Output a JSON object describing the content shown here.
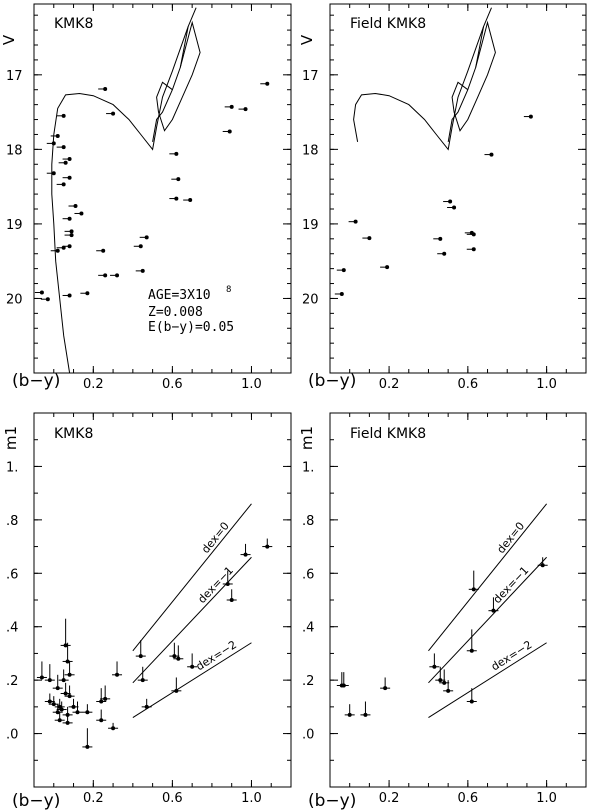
{
  "chart_data": [
    {
      "id": "cmd-kmk8",
      "type": "scatter",
      "title": "KMK8",
      "xlabel": "(b−y)",
      "ylabel": "V",
      "xlim": [
        -0.1,
        1.2
      ],
      "ylim": [
        21,
        16.05
      ],
      "y_inverted": true,
      "x_tick_labels": [
        "0.2",
        "0.6",
        "1.0"
      ],
      "x_ticks": [
        0.2,
        0.6,
        1.0
      ],
      "y_tick_labels": [
        "17",
        "18",
        "19",
        "20"
      ],
      "y_ticks": [
        17,
        18,
        19,
        20
      ],
      "annotations": [
        "AGE=3X10",
        "8",
        "Z=0.008",
        "E(b−y)=0.05"
      ],
      "isochrone": [
        [
          [
            0.08,
            21.0
          ],
          [
            0.05,
            20.5
          ],
          [
            0.03,
            20.0
          ],
          [
            0.01,
            19.5
          ],
          [
            -0.0,
            19.0
          ],
          [
            -0.01,
            18.6
          ],
          [
            -0.01,
            18.2
          ],
          [
            -0.0,
            17.8
          ],
          [
            0.02,
            17.45
          ],
          [
            0.06,
            17.27
          ],
          [
            0.13,
            17.25
          ],
          [
            0.2,
            17.28
          ],
          [
            0.3,
            17.4
          ],
          [
            0.38,
            17.6
          ],
          [
            0.44,
            17.8
          ],
          [
            0.5,
            18.0
          ],
          [
            0.52,
            17.7
          ],
          [
            0.55,
            17.3
          ],
          [
            0.6,
            16.95
          ],
          [
            0.64,
            16.65
          ],
          [
            0.68,
            16.35
          ],
          [
            0.72,
            16.1
          ]
        ],
        [
          [
            0.68,
            16.35
          ],
          [
            0.64,
            16.9
          ],
          [
            0.6,
            17.2
          ],
          [
            0.55,
            17.5
          ],
          [
            0.52,
            17.6
          ],
          [
            0.5,
            17.9
          ]
        ],
        [
          [
            0.64,
            16.9
          ],
          [
            0.67,
            16.6
          ],
          [
            0.7,
            16.3
          ],
          [
            0.74,
            16.7
          ],
          [
            0.7,
            17.0
          ],
          [
            0.65,
            17.3
          ],
          [
            0.6,
            17.6
          ],
          [
            0.56,
            17.75
          ],
          [
            0.53,
            17.5
          ],
          [
            0.52,
            17.3
          ],
          [
            0.55,
            17.1
          ],
          [
            0.6,
            17.2
          ]
        ]
      ],
      "points": [
        {
          "x": 0.26,
          "y": 17.19
        },
        {
          "x": 0.3,
          "y": 17.52
        },
        {
          "x": 1.08,
          "y": 17.12
        },
        {
          "x": 0.9,
          "y": 17.43
        },
        {
          "x": 0.97,
          "y": 17.46
        },
        {
          "x": 0.89,
          "y": 17.76
        },
        {
          "x": 0.05,
          "y": 17.55
        },
        {
          "x": 0.02,
          "y": 17.82
        },
        {
          "x": 0.0,
          "y": 17.92
        },
        {
          "x": 0.05,
          "y": 17.97
        },
        {
          "x": 0.08,
          "y": 18.13
        },
        {
          "x": 0.06,
          "y": 18.18
        },
        {
          "x": 0.0,
          "y": 18.32
        },
        {
          "x": 0.08,
          "y": 18.38
        },
        {
          "x": 0.05,
          "y": 18.47
        },
        {
          "x": 0.62,
          "y": 18.06
        },
        {
          "x": 0.63,
          "y": 18.4
        },
        {
          "x": 0.62,
          "y": 18.66
        },
        {
          "x": 0.69,
          "y": 18.68
        },
        {
          "x": 0.11,
          "y": 18.76
        },
        {
          "x": 0.14,
          "y": 18.86
        },
        {
          "x": 0.08,
          "y": 18.93
        },
        {
          "x": 0.09,
          "y": 19.1
        },
        {
          "x": 0.09,
          "y": 19.15
        },
        {
          "x": 0.08,
          "y": 19.3
        },
        {
          "x": 0.05,
          "y": 19.32
        },
        {
          "x": 0.02,
          "y": 19.36
        },
        {
          "x": 0.25,
          "y": 19.36
        },
        {
          "x": 0.47,
          "y": 19.18
        },
        {
          "x": 0.44,
          "y": 19.3
        },
        {
          "x": 0.26,
          "y": 19.69
        },
        {
          "x": 0.32,
          "y": 19.69
        },
        {
          "x": 0.45,
          "y": 19.63
        },
        {
          "x": -0.06,
          "y": 19.92
        },
        {
          "x": -0.03,
          "y": 20.01
        },
        {
          "x": 0.08,
          "y": 19.96
        },
        {
          "x": 0.17,
          "y": 19.93
        }
      ]
    },
    {
      "id": "cmd-field",
      "type": "scatter",
      "title": "Field KMK8",
      "xlabel": "(b−y)",
      "ylabel": "V",
      "xlim": [
        -0.1,
        1.2
      ],
      "ylim": [
        21,
        16.05
      ],
      "y_inverted": true,
      "x_tick_labels": [
        "0.2",
        "0.6",
        "1.0"
      ],
      "x_ticks": [
        0.2,
        0.6,
        1.0
      ],
      "y_tick_labels": [
        "17",
        "18",
        "19",
        "20"
      ],
      "y_ticks": [
        17,
        18,
        19,
        20
      ],
      "isochrone": [
        [
          [
            0.04,
            17.9
          ],
          [
            0.02,
            17.6
          ],
          [
            0.03,
            17.4
          ],
          [
            0.06,
            17.27
          ],
          [
            0.13,
            17.25
          ],
          [
            0.2,
            17.28
          ],
          [
            0.3,
            17.4
          ],
          [
            0.38,
            17.6
          ],
          [
            0.44,
            17.8
          ],
          [
            0.5,
            18.0
          ],
          [
            0.52,
            17.7
          ],
          [
            0.55,
            17.3
          ],
          [
            0.6,
            16.95
          ],
          [
            0.64,
            16.65
          ],
          [
            0.68,
            16.35
          ],
          [
            0.72,
            16.1
          ]
        ],
        [
          [
            0.68,
            16.35
          ],
          [
            0.64,
            16.9
          ],
          [
            0.6,
            17.2
          ],
          [
            0.55,
            17.5
          ],
          [
            0.52,
            17.6
          ],
          [
            0.5,
            17.9
          ]
        ],
        [
          [
            0.64,
            16.9
          ],
          [
            0.67,
            16.6
          ],
          [
            0.7,
            16.3
          ],
          [
            0.74,
            16.7
          ],
          [
            0.7,
            17.0
          ],
          [
            0.65,
            17.3
          ],
          [
            0.6,
            17.6
          ],
          [
            0.56,
            17.75
          ],
          [
            0.53,
            17.5
          ],
          [
            0.52,
            17.3
          ],
          [
            0.55,
            17.1
          ],
          [
            0.6,
            17.2
          ]
        ]
      ],
      "points": [
        {
          "x": 0.92,
          "y": 17.56
        },
        {
          "x": 0.72,
          "y": 18.07
        },
        {
          "x": 0.03,
          "y": 18.97
        },
        {
          "x": 0.1,
          "y": 19.19
        },
        {
          "x": 0.46,
          "y": 19.2
        },
        {
          "x": 0.51,
          "y": 18.7
        },
        {
          "x": 0.53,
          "y": 18.78
        },
        {
          "x": 0.62,
          "y": 19.12
        },
        {
          "x": 0.63,
          "y": 19.14
        },
        {
          "x": 0.63,
          "y": 19.34
        },
        {
          "x": 0.48,
          "y": 19.4
        },
        {
          "x": 0.19,
          "y": 19.58
        },
        {
          "x": -0.03,
          "y": 19.62
        },
        {
          "x": -0.04,
          "y": 19.94
        }
      ]
    },
    {
      "id": "m1-kmk8",
      "type": "scatter",
      "title": "KMK8",
      "xlabel": "(b−y)",
      "ylabel": "m1",
      "xlim": [
        -0.1,
        1.2
      ],
      "ylim": [
        -0.2,
        1.2
      ],
      "x_tick_labels": [
        "0.2",
        "0.6",
        "1.0"
      ],
      "x_ticks": [
        0.2,
        0.6,
        1.0
      ],
      "y_tick_labels": [
        ".0",
        ".2",
        ".4",
        ".6",
        ".8",
        "1."
      ],
      "y_ticks": [
        0.0,
        0.2,
        0.4,
        0.6,
        0.8,
        1.0
      ],
      "metallicity_lines": [
        {
          "label": "dex=0",
          "from": [
            0.4,
            0.31
          ],
          "to": [
            1.0,
            0.86
          ]
        },
        {
          "label": "dex=−1",
          "from": [
            0.4,
            0.19
          ],
          "to": [
            1.0,
            0.66
          ]
        },
        {
          "label": "dex=−2",
          "from": [
            0.4,
            0.06
          ],
          "to": [
            1.0,
            0.34
          ]
        }
      ],
      "points": [
        {
          "x": -0.06,
          "y": 0.21,
          "err": 0.06
        },
        {
          "x": -0.02,
          "y": 0.2,
          "err": 0.06
        },
        {
          "x": 0.02,
          "y": 0.17,
          "err": 0.05
        },
        {
          "x": 0.06,
          "y": 0.33,
          "err": 0.1
        },
        {
          "x": 0.07,
          "y": 0.27,
          "err": 0.07
        },
        {
          "x": 0.08,
          "y": 0.22,
          "err": 0.05
        },
        {
          "x": 0.05,
          "y": 0.2,
          "err": 0.04
        },
        {
          "x": -0.02,
          "y": 0.12,
          "err": 0.03
        },
        {
          "x": 0.0,
          "y": 0.11,
          "err": 0.03
        },
        {
          "x": 0.03,
          "y": 0.1,
          "err": 0.03
        },
        {
          "x": 0.06,
          "y": 0.15,
          "err": 0.04
        },
        {
          "x": 0.08,
          "y": 0.14,
          "err": 0.04
        },
        {
          "x": 0.02,
          "y": 0.08,
          "err": 0.03
        },
        {
          "x": 0.04,
          "y": 0.09,
          "err": 0.03
        },
        {
          "x": 0.07,
          "y": 0.07,
          "err": 0.03
        },
        {
          "x": 0.1,
          "y": 0.1,
          "err": 0.03
        },
        {
          "x": 0.12,
          "y": 0.08,
          "err": 0.04
        },
        {
          "x": 0.03,
          "y": 0.05,
          "err": 0.03
        },
        {
          "x": 0.07,
          "y": 0.04,
          "err": 0.03
        },
        {
          "x": 0.17,
          "y": 0.08,
          "err": 0.03
        },
        {
          "x": 0.24,
          "y": 0.12,
          "err": 0.05
        },
        {
          "x": 0.26,
          "y": 0.13,
          "err": 0.05
        },
        {
          "x": 0.24,
          "y": 0.05,
          "err": 0.04
        },
        {
          "x": 0.3,
          "y": 0.02,
          "err": 0.02
        },
        {
          "x": 0.17,
          "y": -0.05,
          "err": 0.07
        },
        {
          "x": 0.32,
          "y": 0.22,
          "err": 0.05
        },
        {
          "x": 0.44,
          "y": 0.29,
          "err": 0.06
        },
        {
          "x": 0.45,
          "y": 0.2,
          "err": 0.05
        },
        {
          "x": 0.47,
          "y": 0.1,
          "err": 0.03
        },
        {
          "x": 0.61,
          "y": 0.29,
          "err": 0.05
        },
        {
          "x": 0.63,
          "y": 0.28,
          "err": 0.05
        },
        {
          "x": 0.62,
          "y": 0.16,
          "err": 0.05
        },
        {
          "x": 0.7,
          "y": 0.25,
          "err": 0.05
        },
        {
          "x": 0.88,
          "y": 0.56,
          "err": 0.05
        },
        {
          "x": 0.9,
          "y": 0.5,
          "err": 0.04
        },
        {
          "x": 0.97,
          "y": 0.67,
          "err": 0.04
        },
        {
          "x": 1.08,
          "y": 0.7,
          "err": 0.03
        }
      ]
    },
    {
      "id": "m1-field",
      "type": "scatter",
      "title": "Field KMK8",
      "xlabel": "(b−y)",
      "ylabel": "m1",
      "xlim": [
        -0.1,
        1.2
      ],
      "ylim": [
        -0.2,
        1.2
      ],
      "x_tick_labels": [
        "0.2",
        "0.6",
        "1.0"
      ],
      "x_ticks": [
        0.2,
        0.6,
        1.0
      ],
      "y_tick_labels": [
        ".0",
        ".2",
        ".4",
        ".6",
        ".8",
        "1."
      ],
      "y_ticks": [
        0.0,
        0.2,
        0.4,
        0.6,
        0.8,
        1.0
      ],
      "metallicity_lines": [
        {
          "label": "dex=0",
          "from": [
            0.4,
            0.31
          ],
          "to": [
            1.0,
            0.86
          ]
        },
        {
          "label": "dex=−1",
          "from": [
            0.4,
            0.19
          ],
          "to": [
            1.0,
            0.66
          ]
        },
        {
          "label": "dex=−2",
          "from": [
            0.4,
            0.06
          ],
          "to": [
            1.0,
            0.34
          ]
        }
      ],
      "points": [
        {
          "x": -0.04,
          "y": 0.18,
          "err": 0.05
        },
        {
          "x": -0.03,
          "y": 0.18,
          "err": 0.05
        },
        {
          "x": 0.0,
          "y": 0.07,
          "err": 0.04
        },
        {
          "x": 0.08,
          "y": 0.07,
          "err": 0.05
        },
        {
          "x": 0.18,
          "y": 0.17,
          "err": 0.04
        },
        {
          "x": 0.43,
          "y": 0.25,
          "err": 0.05
        },
        {
          "x": 0.46,
          "y": 0.2,
          "err": 0.05
        },
        {
          "x": 0.48,
          "y": 0.19,
          "err": 0.05
        },
        {
          "x": 0.5,
          "y": 0.16,
          "err": 0.04
        },
        {
          "x": 0.62,
          "y": 0.12,
          "err": 0.05
        },
        {
          "x": 0.62,
          "y": 0.31,
          "err": 0.08
        },
        {
          "x": 0.63,
          "y": 0.54,
          "err": 0.07
        },
        {
          "x": 0.73,
          "y": 0.46,
          "err": 0.05
        },
        {
          "x": 0.98,
          "y": 0.63,
          "err": 0.03
        }
      ]
    }
  ]
}
